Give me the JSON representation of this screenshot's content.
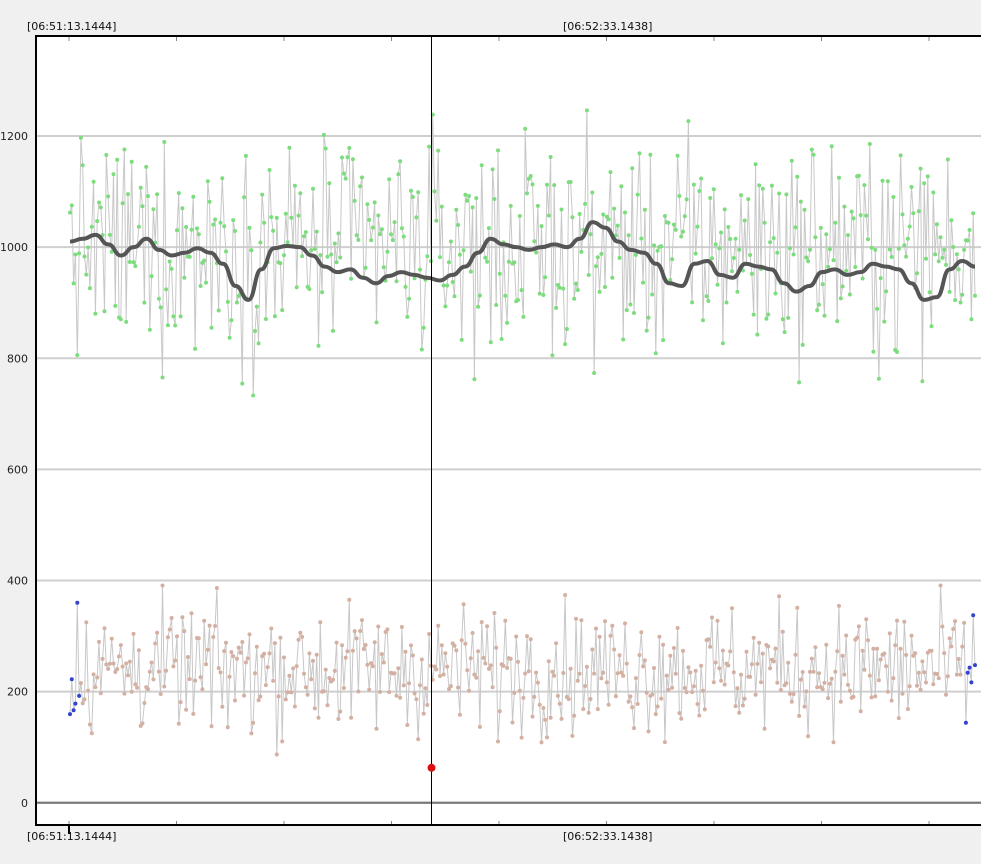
{
  "chart_data": {
    "type": "line",
    "title": "",
    "xlabel": "",
    "ylabel": "",
    "time_labels": {
      "top_left": "[06:51:13.1444]",
      "top_center": "[06:52:33.1438]",
      "bottom_left": "[06:51:13.1444]",
      "bottom_center": "[06:52:33.1438]"
    },
    "ylim": [
      -40,
      1380
    ],
    "yticks": [
      0,
      200,
      400,
      600,
      800,
      1000,
      1200
    ],
    "ytick_labels": [
      "0",
      "200",
      "400",
      "600",
      "800",
      "1000",
      "1200"
    ],
    "grid": true,
    "points_per_series": 500,
    "cursor_fraction": 0.4,
    "series": [
      {
        "role": "upper-raw",
        "mean": 1000,
        "spread": 110,
        "color": "#c8c8c8",
        "marker_color": "#7ddc7d"
      },
      {
        "role": "upper-smoothed",
        "color": "#555555",
        "values": [
          1010,
          1015,
          1022,
          1005,
          985,
          1000,
          1015,
          995,
          985,
          990,
          998,
          990,
          970,
          930,
          905,
          960,
          998,
          1002,
          1000,
          985,
          965,
          955,
          960,
          945,
          935,
          948,
          955,
          950,
          945,
          940,
          950,
          965,
          990,
          1015,
          1005,
          1000,
          995,
          1000,
          1005,
          1000,
          1015,
          1045,
          1035,
          1010,
          995,
          990,
          970,
          935,
          930,
          970,
          975,
          950,
          945,
          970,
          965,
          960,
          935,
          920,
          930,
          955,
          960,
          950,
          955,
          970,
          965,
          960,
          935,
          905,
          910,
          960,
          975,
          965
        ]
      },
      {
        "role": "lower-raw",
        "mean": 240,
        "spread": 65,
        "color": "#c8c8c8",
        "marker_color": "#d4b0a2"
      },
      {
        "role": "lower-edge",
        "color": "#3344cc"
      }
    ],
    "highlight_point": {
      "value": 63,
      "color": "#dd1111"
    }
  }
}
